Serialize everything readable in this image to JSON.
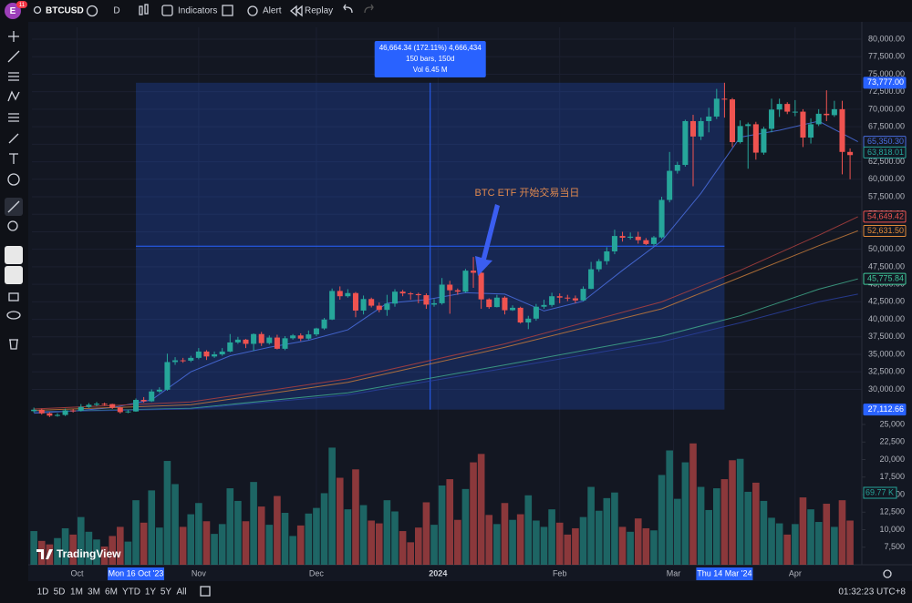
{
  "toolbar": {
    "avatar": "E",
    "badge": "11",
    "symbol": "BTCUSD",
    "interval": "D",
    "indicators": "Indicators",
    "alert": "Alert",
    "replay": "Replay"
  },
  "chart_data": {
    "type": "candlestick",
    "x": [
      0,
      2,
      4,
      6,
      8,
      10,
      12,
      14,
      16,
      18,
      20,
      22,
      24,
      26,
      28,
      30,
      32,
      34,
      36,
      38,
      40,
      42,
      44,
      46,
      48,
      50,
      52,
      54,
      56,
      58,
      60,
      62,
      64,
      66,
      68,
      70,
      72,
      74,
      76,
      78,
      80,
      82,
      84,
      86,
      88,
      90,
      92,
      94,
      96,
      98,
      100,
      102,
      104,
      106,
      108,
      110,
      112,
      114,
      116,
      118,
      120,
      122,
      124,
      126,
      128,
      130,
      132,
      134,
      136,
      138,
      140,
      142,
      144,
      146,
      148,
      150,
      152,
      154,
      156,
      158,
      160,
      162,
      164,
      166,
      168,
      170,
      172,
      174,
      176,
      178,
      180,
      182,
      184,
      186,
      188,
      190,
      192,
      194,
      196,
      198,
      200,
      202,
      204,
      206,
      208
    ],
    "open": [
      26900,
      27100,
      26580,
      26250,
      26350,
      27000,
      26950,
      27500,
      27800,
      27950,
      27900,
      27400,
      26750,
      26850,
      28500,
      28300,
      29700,
      29950,
      33900,
      34150,
      34100,
      34500,
      35400,
      34700,
      35000,
      35400,
      36700,
      37100,
      36500,
      37900,
      36600,
      37400,
      35800,
      37300,
      37700,
      37250,
      37850,
      38700,
      39970,
      44050,
      43300,
      43750,
      41250,
      42900,
      41950,
      41350,
      42250,
      43950,
      43700,
      43600,
      43450,
      42100,
      42300,
      44950,
      44150,
      43950,
      46950,
      46650,
      42850,
      41750,
      43100,
      41300,
      41650,
      39550,
      40100,
      41800,
      42050,
      43300,
      43100,
      43000,
      42700,
      44350,
      47150,
      48300,
      49700,
      51900,
      51650,
      51800,
      51300,
      50750,
      51700,
      57050,
      61200,
      62050,
      68300,
      66100,
      68300,
      68950,
      71500,
      71400,
      65300,
      67600,
      67850,
      63800,
      67200,
      69950,
      70750,
      69650,
      69650,
      65950,
      67850,
      69350,
      69150,
      70000,
      63900
    ],
    "high": [
      27400,
      27250,
      26750,
      26600,
      27250,
      27200,
      27900,
      28050,
      28200,
      28100,
      27950,
      27500,
      27050,
      28700,
      28900,
      30000,
      30300,
      35100,
      34600,
      34500,
      34800,
      35900,
      35600,
      35400,
      35900,
      37900,
      37500,
      37200,
      38000,
      38200,
      37700,
      37800,
      37600,
      37900,
      38000,
      38400,
      38800,
      40200,
      44400,
      44700,
      44300,
      43900,
      43400,
      43100,
      42400,
      43500,
      44300,
      44200,
      43900,
      43800,
      43700,
      42900,
      45900,
      45500,
      44400,
      47200,
      48900,
      46800,
      43000,
      43500,
      43300,
      42000,
      41800,
      40500,
      42200,
      42800,
      43800,
      43700,
      43500,
      43400,
      44700,
      48200,
      48600,
      50300,
      52800,
      52500,
      52400,
      52500,
      51600,
      51900,
      57500,
      63900,
      62500,
      68500,
      69200,
      68800,
      70200,
      72900,
      73777,
      71600,
      68400,
      68100,
      68200,
      67500,
      71500,
      71500,
      71000,
      71300,
      70000,
      68700,
      70000,
      72700,
      71200,
      71200,
      64400
    ],
    "low": [
      26700,
      26400,
      26050,
      26100,
      26200,
      26700,
      26850,
      27350,
      27600,
      27700,
      27200,
      26550,
      26600,
      26800,
      28100,
      28200,
      29500,
      29800,
      33500,
      33800,
      33900,
      34300,
      34200,
      34500,
      34800,
      35300,
      36500,
      35900,
      35500,
      36200,
      36400,
      35700,
      35600,
      37100,
      36900,
      37100,
      37600,
      38500,
      39900,
      42800,
      43100,
      40300,
      40700,
      41700,
      41000,
      40500,
      41800,
      43300,
      42800,
      42300,
      41500,
      41800,
      42100,
      40800,
      43500,
      43800,
      44500,
      41500,
      41500,
      41700,
      40700,
      41200,
      39400,
      38600,
      39800,
      41500,
      41800,
      42300,
      42600,
      42300,
      42600,
      44300,
      46800,
      47800,
      49300,
      51100,
      51400,
      50800,
      50600,
      50500,
      51500,
      56700,
      60800,
      61800,
      59000,
      65600,
      66700,
      68600,
      68800,
      64600,
      65100,
      61500,
      62800,
      63500,
      66700,
      68900,
      69300,
      69000,
      64600,
      65100,
      67600,
      68300,
      68900,
      60700,
      60000
    ],
    "close": [
      27100,
      26580,
      26250,
      26350,
      27000,
      26950,
      27500,
      27800,
      27950,
      27900,
      27400,
      26750,
      26850,
      28500,
      28300,
      29700,
      29950,
      33900,
      34150,
      34100,
      34500,
      35400,
      34700,
      35000,
      35400,
      36700,
      37100,
      36500,
      37900,
      36600,
      37400,
      35800,
      37300,
      37700,
      37250,
      37850,
      38700,
      39970,
      44050,
      43300,
      43750,
      41250,
      42900,
      41950,
      41350,
      42250,
      43950,
      43700,
      43600,
      43450,
      42100,
      42300,
      44950,
      44150,
      43950,
      46950,
      46650,
      42850,
      41750,
      43100,
      41300,
      41650,
      39550,
      40100,
      41800,
      42050,
      43300,
      43100,
      43000,
      42700,
      44350,
      47150,
      48300,
      49700,
      51900,
      51650,
      51800,
      51300,
      50750,
      51700,
      57050,
      61200,
      62050,
      68300,
      66100,
      68300,
      68950,
      71500,
      71400,
      65300,
      67600,
      67850,
      63800,
      67200,
      69950,
      70750,
      69650,
      69650,
      65950,
      67850,
      69350,
      69150,
      70000,
      63900,
      63450
    ],
    "volume": [
      9800,
      8400,
      7900,
      8800,
      10200,
      9300,
      11800,
      9700,
      8600,
      7600,
      9100,
      10400,
      8300,
      14200,
      11000,
      15600,
      10300,
      19800,
      16500,
      10400,
      12200,
      13800,
      11200,
      9400,
      10800,
      15900,
      14100,
      11200,
      16800,
      13300,
      10700,
      14800,
      12400,
      9100,
      10600,
      12300,
      13100,
      15200,
      21700,
      17400,
      12900,
      18600,
      13500,
      11300,
      10900,
      14200,
      12600,
      9800,
      8200,
      10300,
      13900,
      10700,
      16300,
      17200,
      11400,
      15800,
      19600,
      20800,
      12100,
      10800,
      13800,
      11400,
      12200,
      14900,
      11300,
      10400,
      12900,
      11000,
      9300,
      10200,
      11800,
      16100,
      12700,
      14500,
      15300,
      10400,
      9700,
      11600,
      10200,
      9900,
      17800,
      21300,
      14400,
      19600,
      22300,
      16100,
      12800,
      15900,
      17200,
      19900,
      20100,
      15400,
      16700,
      14100,
      11700,
      10900,
      9300,
      10800,
      14600,
      12900,
      11100,
      13700,
      10400,
      14200,
      11300
    ],
    "up_color": "#26a69a",
    "down_color": "#ef5350",
    "xlim": [
      -0.5,
      211
    ],
    "xticks": [
      {
        "value": 11,
        "label": "Oct"
      },
      {
        "value": 42,
        "label": "Nov"
      },
      {
        "value": 72,
        "label": "Dec"
      },
      {
        "value": 103,
        "label": "2024"
      },
      {
        "value": 134,
        "label": "Feb"
      },
      {
        "value": 163,
        "label": "Mar"
      },
      {
        "value": 194,
        "label": "Apr"
      }
    ],
    "ylim": [
      25770,
      81690
    ],
    "yticks": [
      {
        "value": 80000,
        "label": "80,000.00"
      },
      {
        "value": 77500,
        "label": "77,500.00"
      },
      {
        "value": 75000,
        "label": "75,000.00"
      },
      {
        "value": 72500,
        "label": "72,500.00"
      },
      {
        "value": 70000,
        "label": "70,000.00"
      },
      {
        "value": 67500,
        "label": "67,500.00"
      },
      {
        "value": 65000,
        "label": "65,000.00"
      },
      {
        "value": 62500,
        "label": "62,500.00"
      },
      {
        "value": 60000,
        "label": "60,000.00"
      },
      {
        "value": 57500,
        "label": "57,500.00"
      },
      {
        "value": 55000,
        "label": "55,000.00"
      },
      {
        "value": 52500,
        "label": "52,500.00"
      },
      {
        "value": 50000,
        "label": "50,000.00"
      },
      {
        "value": 47500,
        "label": "47,500.00"
      },
      {
        "value": 45000,
        "label": "45,000.00"
      },
      {
        "value": 42500,
        "label": "42,500.00"
      },
      {
        "value": 40000,
        "label": "40,000.00"
      },
      {
        "value": 37500,
        "label": "37,500.00"
      },
      {
        "value": 35000,
        "label": "35,000.00"
      },
      {
        "value": 32500,
        "label": "32,500.00"
      },
      {
        "value": 30000,
        "label": "30,000.00"
      }
    ],
    "volume_ylim": [
      5000,
      25780
    ],
    "volume_yticks": [
      {
        "value": 25000,
        "label": "25,000"
      },
      {
        "value": 22500,
        "label": "22,500"
      },
      {
        "value": 20000,
        "label": "20,000"
      },
      {
        "value": 17500,
        "label": "17,500"
      },
      {
        "value": 15000,
        "label": "15,000"
      },
      {
        "value": 12500,
        "label": "12,500"
      },
      {
        "value": 10000,
        "label": "10,000"
      },
      {
        "value": 7500,
        "label": "7,500"
      }
    ],
    "overlays": [
      {
        "color": "#4a6ee0",
        "x": [
          0,
          10,
          20,
          30,
          40,
          50,
          60,
          70,
          80,
          90,
          100,
          110,
          120,
          130,
          140,
          150,
          160,
          170,
          180,
          190,
          200,
          210
        ],
        "values": [
          26600,
          26900,
          27400,
          28500,
          32500,
          34800,
          36000,
          37000,
          38500,
          42300,
          42800,
          43800,
          43600,
          41200,
          42600,
          47000,
          51200,
          58000,
          66000,
          67000,
          68300,
          65350.3
        ]
      },
      {
        "color": "#b0413e",
        "x": [
          0,
          40,
          80,
          120,
          160,
          180,
          200,
          210
        ],
        "values": [
          27200,
          28200,
          31500,
          36500,
          42500,
          47000,
          52000,
          54649.42
        ]
      },
      {
        "color": "#c47a3a",
        "x": [
          0,
          40,
          80,
          120,
          160,
          180,
          200,
          210
        ],
        "values": [
          27000,
          27800,
          31000,
          36000,
          41500,
          46000,
          50500,
          52631.5
        ]
      },
      {
        "color": "#3fa88a",
        "x": [
          0,
          40,
          80,
          120,
          160,
          180,
          200,
          210
        ],
        "values": [
          26800,
          27300,
          29500,
          33500,
          37600,
          40500,
          44300,
          45775.84
        ]
      },
      {
        "color": "#2a3f9e",
        "x": [
          0,
          40,
          80,
          120,
          160,
          180,
          200,
          210
        ],
        "values": [
          26800,
          27200,
          29200,
          33000,
          36800,
          39500,
          42500,
          43600
        ]
      }
    ],
    "price_badges": [
      {
        "value": 65350.3,
        "label": "65,350.30",
        "color": "#4a6ee0"
      },
      {
        "value": 63818.01,
        "label": "63,818.01",
        "color": "#26a69a"
      },
      {
        "value": 54649.42,
        "label": "54,649.42",
        "color": "#ef5350"
      },
      {
        "value": 52631.5,
        "label": "52,631.50",
        "color": "#e08a3a"
      },
      {
        "value": 45775.84,
        "label": "45,775.84",
        "color": "#3fc89a"
      }
    ],
    "volume_badge": "69.77 K",
    "measure": {
      "from": {
        "x": {
          "value": 26,
          "label": "Mon 16 Oct '23"
        },
        "y": {
          "value": 27112.66,
          "label": "27,112.66"
        }
      },
      "to": {
        "x": {
          "value": 176,
          "label": "Thu 14 Mar '24"
        },
        "y": {
          "value": 73777,
          "label": "73,777.00"
        }
      },
      "info": [
        "46,664.34 (172.11%) 4,666,434",
        "150 bars, 150d",
        "Vol 6.45 M"
      ]
    },
    "annotation": "BTC ETF 开始交易当日",
    "watermark": "TradingView"
  },
  "bottom_bar": {
    "ranges": [
      "1D",
      "5D",
      "1M",
      "3M",
      "6M",
      "YTD",
      "1Y",
      "5Y",
      "All"
    ],
    "clock": "01:32:23 UTC+8"
  }
}
